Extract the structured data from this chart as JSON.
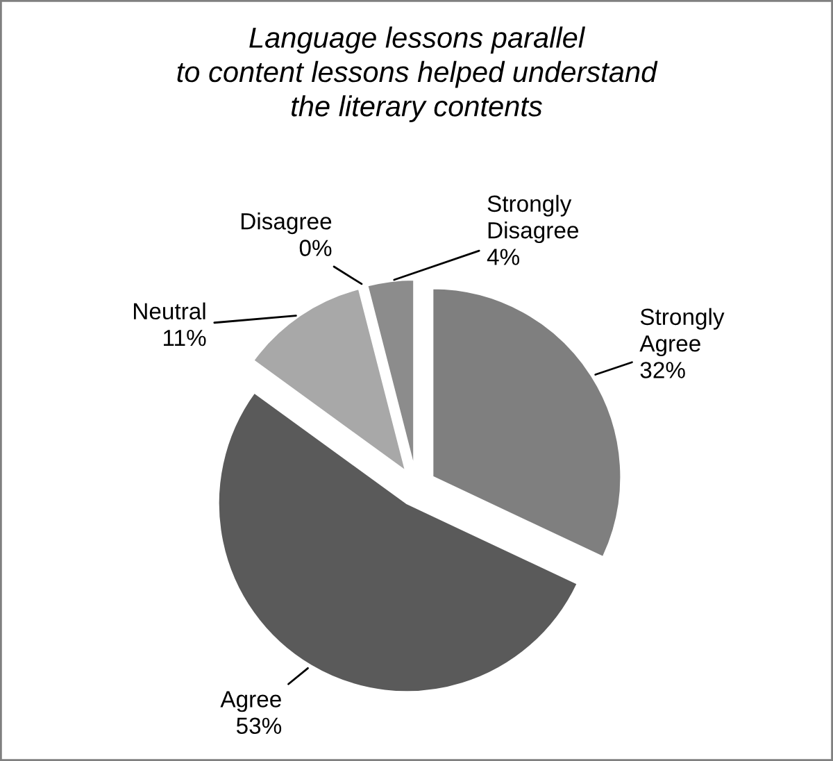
{
  "chart_data": {
    "type": "pie",
    "title": "Language lessons parallel\nto content lessons helped understand\nthe literary contents",
    "categories": [
      "Strongly\nAgree",
      "Agree",
      "Neutral",
      "Disagree",
      "Strongly\nDisagree"
    ],
    "values": [
      32,
      53,
      11,
      0,
      4
    ],
    "value_labels": [
      "32%",
      "53%",
      "11%",
      "0%",
      "4%"
    ],
    "colors": [
      "#7f7f7f",
      "#5a5a5a",
      "#a8a8a8",
      "#d0d0d0",
      "#8c8c8c"
    ],
    "legend": false
  }
}
